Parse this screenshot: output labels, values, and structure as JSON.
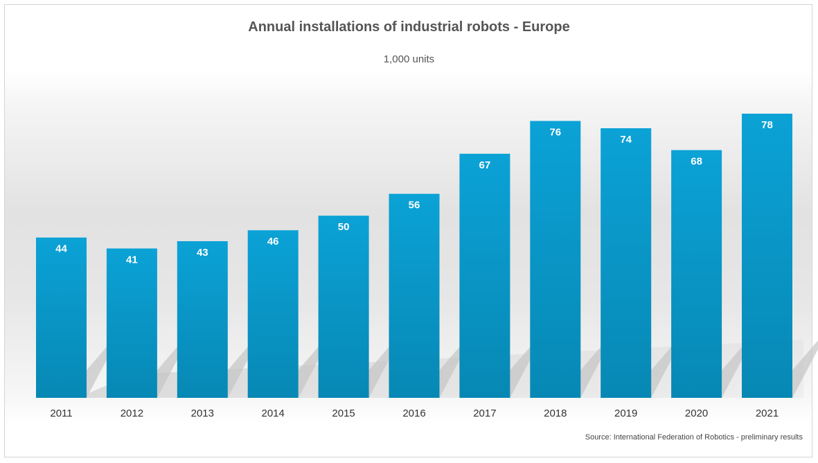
{
  "chart_data": {
    "type": "bar",
    "title": "Annual installations of industrial robots - Europe",
    "subtitle": "1,000 units",
    "categories": [
      "2011",
      "2012",
      "2013",
      "2014",
      "2015",
      "2016",
      "2017",
      "2018",
      "2019",
      "2020",
      "2021"
    ],
    "values": [
      44,
      41,
      43,
      46,
      50,
      56,
      67,
      76,
      74,
      68,
      78
    ],
    "xlabel": "",
    "ylabel": "",
    "ylim": [
      0,
      78
    ],
    "grid": false,
    "legend": "none",
    "data_labels": true,
    "bar_color": "#0a9bcf",
    "source": "Source: International Federation of Robotics - preliminary results"
  }
}
